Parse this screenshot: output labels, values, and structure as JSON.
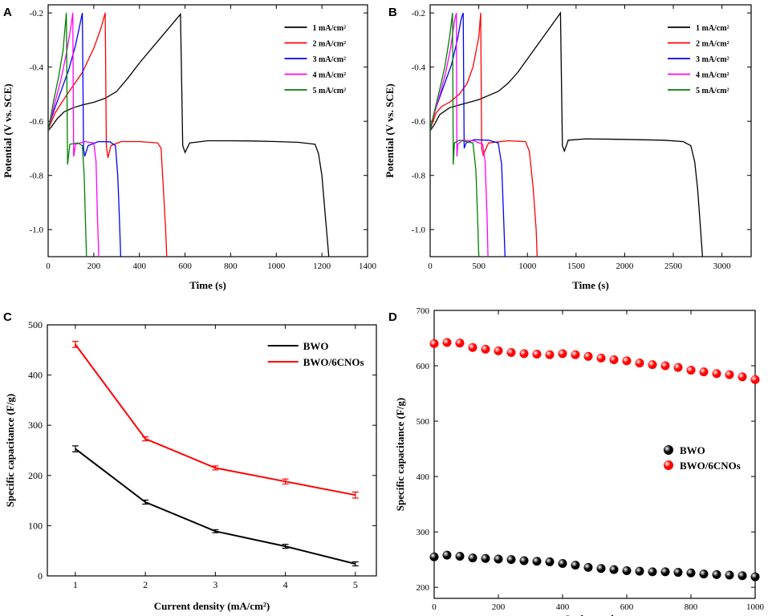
{
  "figure": {
    "panel_letters": [
      "A",
      "B",
      "C",
      "D"
    ]
  },
  "chart_data": [
    {
      "panel": "A",
      "type": "line",
      "title": "",
      "xlabel": "Time (s)",
      "ylabel": "Potential (V vs. SCE)",
      "xlim": [
        0,
        1400
      ],
      "ylim": [
        -1.1,
        -0.17
      ],
      "xticks": [
        0,
        200,
        400,
        600,
        800,
        1000,
        1200,
        1400
      ],
      "yticks": [
        -1.0,
        -0.8,
        -0.6,
        -0.4,
        -0.2
      ],
      "ytick_labels": [
        "-1.0",
        "-0.8",
        "-0.6",
        "-0.4",
        "-0.2"
      ],
      "legend_position": "top-right",
      "series": [
        {
          "name": "1 mA/cm²",
          "color": "#000000",
          "x": [
            0,
            15,
            40,
            70,
            110,
            150,
            200,
            250,
            300,
            350,
            400,
            450,
            500,
            540,
            580,
            590,
            600,
            620,
            700,
            800,
            900,
            1000,
            1100,
            1170,
            1185,
            1200,
            1215,
            1225,
            1230
          ],
          "y": [
            -0.635,
            -0.62,
            -0.59,
            -0.565,
            -0.55,
            -0.54,
            -0.53,
            -0.515,
            -0.49,
            -0.44,
            -0.385,
            -0.335,
            -0.285,
            -0.245,
            -0.205,
            -0.69,
            -0.715,
            -0.68,
            -0.672,
            -0.672,
            -0.673,
            -0.675,
            -0.678,
            -0.685,
            -0.72,
            -0.8,
            -0.95,
            -1.05,
            -1.1
          ]
        },
        {
          "name": "2 mA/cm²",
          "color": "#ff0000",
          "x": [
            0,
            10,
            30,
            60,
            100,
            150,
            200,
            230,
            250,
            255,
            262,
            275,
            320,
            400,
            480,
            495,
            505,
            515,
            520
          ],
          "y": [
            -0.635,
            -0.61,
            -0.57,
            -0.53,
            -0.48,
            -0.42,
            -0.33,
            -0.26,
            -0.2,
            -0.69,
            -0.735,
            -0.69,
            -0.675,
            -0.675,
            -0.68,
            -0.7,
            -0.85,
            -1.0,
            -1.1
          ]
        },
        {
          "name": "3 mA/cm²",
          "color": "#0000ff",
          "x": [
            0,
            10,
            30,
            60,
            90,
            120,
            140,
            150,
            155,
            160,
            175,
            220,
            270,
            295,
            305,
            312,
            318
          ],
          "y": [
            -0.635,
            -0.6,
            -0.55,
            -0.48,
            -0.41,
            -0.32,
            -0.24,
            -0.2,
            -0.7,
            -0.73,
            -0.69,
            -0.675,
            -0.676,
            -0.69,
            -0.8,
            -0.95,
            -1.1
          ]
        },
        {
          "name": "4 mA/cm²",
          "color": "#ff00ff",
          "x": [
            0,
            10,
            30,
            55,
            80,
            100,
            108,
            112,
            120,
            160,
            200,
            210,
            216,
            222
          ],
          "y": [
            -0.635,
            -0.6,
            -0.53,
            -0.45,
            -0.35,
            -0.25,
            -0.2,
            -0.73,
            -0.685,
            -0.675,
            -0.68,
            -0.75,
            -0.95,
            -1.1
          ]
        },
        {
          "name": "5 mA/cm²",
          "color": "#008000",
          "x": [
            0,
            10,
            25,
            45,
            65,
            80,
            85,
            95,
            130,
            150,
            158,
            163,
            168
          ],
          "y": [
            -0.635,
            -0.59,
            -0.52,
            -0.44,
            -0.34,
            -0.2,
            -0.76,
            -0.685,
            -0.68,
            -0.69,
            -0.8,
            -0.95,
            -1.1
          ]
        }
      ]
    },
    {
      "panel": "B",
      "type": "line",
      "title": "",
      "xlabel": "Time (s)",
      "ylabel": "Potential (V vs. SCE)",
      "xlim": [
        0,
        3300
      ],
      "ylim": [
        -1.1,
        -0.17
      ],
      "xticks": [
        0,
        500,
        1000,
        1500,
        2000,
        2500,
        3000
      ],
      "yticks": [
        -1.0,
        -0.8,
        -0.6,
        -0.4,
        -0.2
      ],
      "ytick_labels": [
        "-1.0",
        "-0.8",
        "-0.6",
        "-0.4",
        "-0.2"
      ],
      "legend_position": "top-right",
      "series": [
        {
          "name": "1 mA/cm²",
          "color": "#000000",
          "x": [
            0,
            40,
            100,
            200,
            300,
            500,
            700,
            800,
            900,
            1000,
            1100,
            1200,
            1300,
            1340,
            1360,
            1380,
            1420,
            1600,
            2000,
            2400,
            2600,
            2680,
            2720,
            2750,
            2780,
            2800
          ],
          "y": [
            -0.635,
            -0.615,
            -0.575,
            -0.55,
            -0.54,
            -0.52,
            -0.49,
            -0.46,
            -0.42,
            -0.37,
            -0.32,
            -0.27,
            -0.22,
            -0.2,
            -0.69,
            -0.71,
            -0.67,
            -0.665,
            -0.667,
            -0.67,
            -0.675,
            -0.69,
            -0.75,
            -0.85,
            -1.0,
            -1.1
          ]
        },
        {
          "name": "2 mA/cm²",
          "color": "#ff0000",
          "x": [
            0,
            20,
            60,
            120,
            200,
            300,
            380,
            440,
            500,
            520,
            530,
            545,
            600,
            800,
            980,
            1020,
            1060,
            1090,
            1100
          ],
          "y": [
            -0.635,
            -0.61,
            -0.57,
            -0.545,
            -0.53,
            -0.5,
            -0.46,
            -0.4,
            -0.29,
            -0.2,
            -0.7,
            -0.725,
            -0.68,
            -0.672,
            -0.675,
            -0.71,
            -0.85,
            -1.0,
            -1.1
          ]
        },
        {
          "name": "3 mA/cm²",
          "color": "#0000ff",
          "x": [
            0,
            20,
            60,
            110,
            160,
            220,
            280,
            320,
            340,
            350,
            370,
            450,
            600,
            700,
            735,
            755,
            770
          ],
          "y": [
            -0.635,
            -0.6,
            -0.55,
            -0.5,
            -0.45,
            -0.39,
            -0.3,
            -0.22,
            -0.2,
            -0.7,
            -0.68,
            -0.668,
            -0.67,
            -0.68,
            -0.76,
            -0.95,
            -1.1
          ]
        },
        {
          "name": "4 mA/cm²",
          "color": "#ff00ff",
          "x": [
            0,
            20,
            60,
            110,
            160,
            210,
            250,
            270,
            275,
            285,
            330,
            450,
            540,
            565,
            585,
            595
          ],
          "y": [
            -0.635,
            -0.6,
            -0.55,
            -0.49,
            -0.42,
            -0.33,
            -0.23,
            -0.2,
            -0.73,
            -0.685,
            -0.67,
            -0.672,
            -0.685,
            -0.75,
            -0.95,
            -1.1
          ]
        },
        {
          "name": "5 mA/cm²",
          "color": "#008000",
          "x": [
            0,
            20,
            60,
            100,
            150,
            200,
            230,
            238,
            250,
            300,
            440,
            470,
            490,
            500
          ],
          "y": [
            -0.635,
            -0.6,
            -0.54,
            -0.48,
            -0.4,
            -0.29,
            -0.2,
            -0.76,
            -0.68,
            -0.67,
            -0.68,
            -0.78,
            -0.98,
            -1.1
          ]
        }
      ]
    },
    {
      "panel": "C",
      "type": "line",
      "title": "",
      "xlabel": "Current density (mA/cm²)",
      "ylabel": "Specific capacitance (F/g)",
      "xlim": [
        0.6,
        5.3
      ],
      "ylim": [
        0,
        500
      ],
      "xticks": [
        1,
        2,
        3,
        4,
        5
      ],
      "yticks": [
        0,
        100,
        200,
        300,
        400,
        500
      ],
      "legend_position": "top-right",
      "categories": [
        1,
        2,
        3,
        4,
        5
      ],
      "series": [
        {
          "name": "BWO",
          "color": "#000000",
          "values": [
            253,
            147,
            89,
            59,
            24
          ],
          "errors": [
            6,
            4,
            3,
            4,
            4
          ]
        },
        {
          "name": "BWO/6CNOs",
          "color": "#ff0000",
          "values": [
            461,
            273,
            215,
            188,
            161
          ],
          "errors": [
            6,
            4,
            4,
            5,
            6
          ]
        }
      ]
    },
    {
      "panel": "D",
      "type": "scatter",
      "title": "",
      "xlabel": "Cycle number",
      "ylabel": "Specific capacitance (F/g)",
      "xlim": [
        0,
        1000
      ],
      "ylim": [
        180,
        700
      ],
      "xticks": [
        0,
        200,
        400,
        600,
        800,
        1000
      ],
      "yticks": [
        200,
        300,
        400,
        500,
        600,
        700
      ],
      "legend_position": "right",
      "x": [
        0,
        40,
        80,
        120,
        160,
        200,
        240,
        280,
        320,
        360,
        400,
        440,
        480,
        520,
        560,
        600,
        640,
        680,
        720,
        760,
        800,
        840,
        880,
        920,
        960,
        1000
      ],
      "series": [
        {
          "name": "BWO",
          "color": "#000000",
          "values": [
            255,
            258,
            256,
            253,
            252,
            251,
            250,
            248,
            247,
            246,
            243,
            240,
            236,
            234,
            232,
            230,
            229,
            228,
            228,
            227,
            226,
            224,
            223,
            222,
            221,
            219
          ]
        },
        {
          "name": "BWO/6CNOs",
          "color": "#ff0000",
          "values": [
            640,
            642,
            641,
            633,
            630,
            627,
            624,
            622,
            621,
            620,
            622,
            620,
            617,
            614,
            611,
            609,
            605,
            602,
            600,
            597,
            592,
            589,
            586,
            584,
            580,
            575
          ]
        }
      ]
    }
  ]
}
